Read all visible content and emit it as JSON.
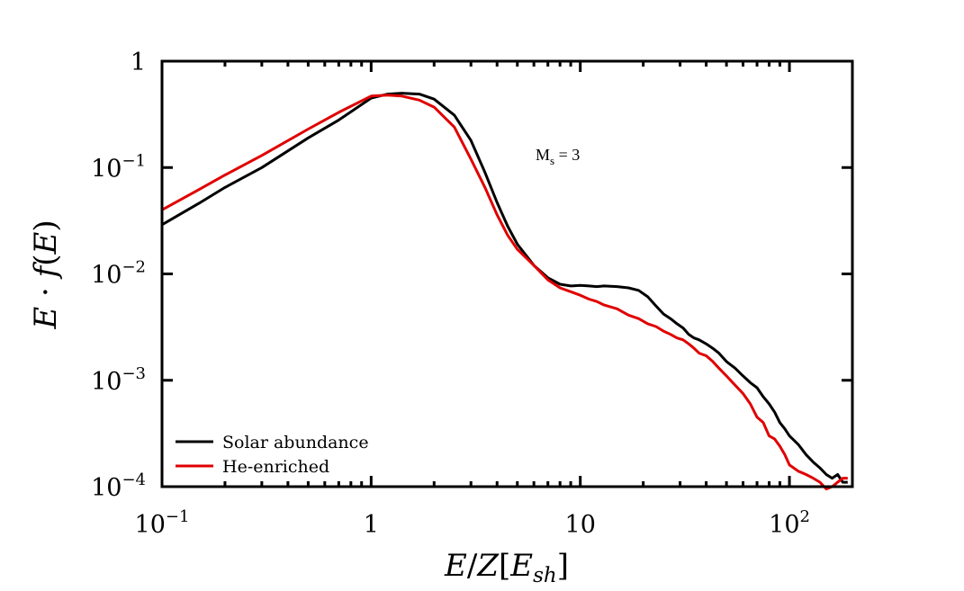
{
  "chart_data": {
    "type": "line",
    "xscale": "log",
    "yscale": "log",
    "xlim": [
      0.1,
      200
    ],
    "ylim": [
      0.0001,
      1
    ],
    "xlabel": "E/Z[E_sh]",
    "ylabel": "E · f(E)",
    "xticks": [
      {
        "value": 0.1,
        "base": "10",
        "exp": "−1"
      },
      {
        "value": 1,
        "base": "1",
        "exp": ""
      },
      {
        "value": 10,
        "base": "10",
        "exp": ""
      },
      {
        "value": 100,
        "base": "10",
        "exp": "2"
      }
    ],
    "yticks": [
      {
        "value": 1,
        "base": "1",
        "exp": ""
      },
      {
        "value": 0.1,
        "base": "10",
        "exp": "−1"
      },
      {
        "value": 0.01,
        "base": "10",
        "exp": "−2"
      },
      {
        "value": 0.001,
        "base": "10",
        "exp": "−3"
      },
      {
        "value": 0.0001,
        "base": "10",
        "exp": "−4"
      }
    ],
    "annotation": {
      "main": "M",
      "sub": "s",
      "rest": " = 3"
    },
    "legend_position": "bottom-left",
    "series": [
      {
        "name": "Solar abundance",
        "color": "#000000",
        "points": [
          [
            0.1,
            0.029
          ],
          [
            0.15,
            0.046
          ],
          [
            0.2,
            0.065
          ],
          [
            0.3,
            0.1
          ],
          [
            0.5,
            0.19
          ],
          [
            0.7,
            0.28
          ],
          [
            1.0,
            0.45
          ],
          [
            1.2,
            0.49
          ],
          [
            1.4,
            0.5
          ],
          [
            1.7,
            0.49
          ],
          [
            2.0,
            0.44
          ],
          [
            2.5,
            0.31
          ],
          [
            3.0,
            0.18
          ],
          [
            3.5,
            0.09
          ],
          [
            4.0,
            0.047
          ],
          [
            4.5,
            0.028
          ],
          [
            5.0,
            0.019
          ],
          [
            6.0,
            0.012
          ],
          [
            7.0,
            0.0092
          ],
          [
            8.0,
            0.008
          ],
          [
            9.0,
            0.0077
          ],
          [
            10.0,
            0.0078
          ],
          [
            11.0,
            0.0077
          ],
          [
            12.0,
            0.0076
          ],
          [
            13.0,
            0.0077
          ],
          [
            15.0,
            0.0076
          ],
          [
            17.0,
            0.0074
          ],
          [
            19.0,
            0.007
          ],
          [
            21.0,
            0.0061
          ],
          [
            23.0,
            0.005
          ],
          [
            25.0,
            0.0042
          ],
          [
            27.0,
            0.0038
          ],
          [
            29.0,
            0.0034
          ],
          [
            31.0,
            0.0031
          ],
          [
            33.0,
            0.0027
          ],
          [
            35.0,
            0.0025
          ],
          [
            37.0,
            0.0024
          ],
          [
            40.0,
            0.0022
          ],
          [
            43.0,
            0.002
          ],
          [
            46.0,
            0.0018
          ],
          [
            50.0,
            0.0015
          ],
          [
            55.0,
            0.0013
          ],
          [
            60.0,
            0.0011
          ],
          [
            65.0,
            0.00095
          ],
          [
            70.0,
            0.00085
          ],
          [
            75.0,
            0.0007
          ],
          [
            80.0,
            0.0006
          ],
          [
            85.0,
            0.0005
          ],
          [
            90.0,
            0.0004
          ],
          [
            95.0,
            0.00035
          ],
          [
            100.0,
            0.0003
          ],
          [
            110.0,
            0.00025
          ],
          [
            120.0,
            0.0002
          ],
          [
            130.0,
            0.00017
          ],
          [
            140.0,
            0.00015
          ],
          [
            150.0,
            0.00013
          ],
          [
            160.0,
            0.00012
          ],
          [
            170.0,
            0.00013
          ],
          [
            180.0,
            0.00011
          ],
          [
            190.0,
            0.00011
          ]
        ]
      },
      {
        "name": "He-enriched",
        "color": "#e00000",
        "points": [
          [
            0.1,
            0.04
          ],
          [
            0.15,
            0.062
          ],
          [
            0.2,
            0.085
          ],
          [
            0.3,
            0.13
          ],
          [
            0.5,
            0.23
          ],
          [
            0.7,
            0.33
          ],
          [
            1.0,
            0.47
          ],
          [
            1.2,
            0.48
          ],
          [
            1.4,
            0.47
          ],
          [
            1.7,
            0.43
          ],
          [
            2.0,
            0.37
          ],
          [
            2.5,
            0.24
          ],
          [
            3.0,
            0.12
          ],
          [
            3.5,
            0.065
          ],
          [
            4.0,
            0.036
          ],
          [
            4.5,
            0.023
          ],
          [
            5.0,
            0.017
          ],
          [
            6.0,
            0.012
          ],
          [
            7.0,
            0.0088
          ],
          [
            8.0,
            0.0074
          ],
          [
            9.0,
            0.0068
          ],
          [
            10.0,
            0.0063
          ],
          [
            11.0,
            0.0058
          ],
          [
            12.0,
            0.0055
          ],
          [
            13.0,
            0.0051
          ],
          [
            15.0,
            0.0047
          ],
          [
            17.0,
            0.0041
          ],
          [
            19.0,
            0.0038
          ],
          [
            21.0,
            0.0034
          ],
          [
            23.0,
            0.0032
          ],
          [
            25.0,
            0.0029
          ],
          [
            27.0,
            0.0027
          ],
          [
            29.0,
            0.0025
          ],
          [
            31.0,
            0.0024
          ],
          [
            33.0,
            0.0022
          ],
          [
            35.0,
            0.002
          ],
          [
            37.0,
            0.0018
          ],
          [
            40.0,
            0.0017
          ],
          [
            43.0,
            0.0015
          ],
          [
            46.0,
            0.0013
          ],
          [
            50.0,
            0.0011
          ],
          [
            55.0,
            0.0009
          ],
          [
            60.0,
            0.00075
          ],
          [
            65.0,
            0.0006
          ],
          [
            70.0,
            0.00045
          ],
          [
            75.0,
            0.0004
          ],
          [
            80.0,
            0.0003
          ],
          [
            85.0,
            0.00028
          ],
          [
            90.0,
            0.00024
          ],
          [
            95.0,
            0.0002
          ],
          [
            100.0,
            0.00016
          ],
          [
            110.0,
            0.00014
          ],
          [
            120.0,
            0.00013
          ],
          [
            130.0,
            0.00012
          ],
          [
            140.0,
            0.00011
          ],
          [
            150.0,
            9.5e-05
          ],
          [
            160.0,
            0.0001
          ],
          [
            170.0,
            0.00011
          ],
          [
            180.0,
            0.00012
          ],
          [
            190.0,
            0.00012
          ]
        ]
      }
    ]
  }
}
